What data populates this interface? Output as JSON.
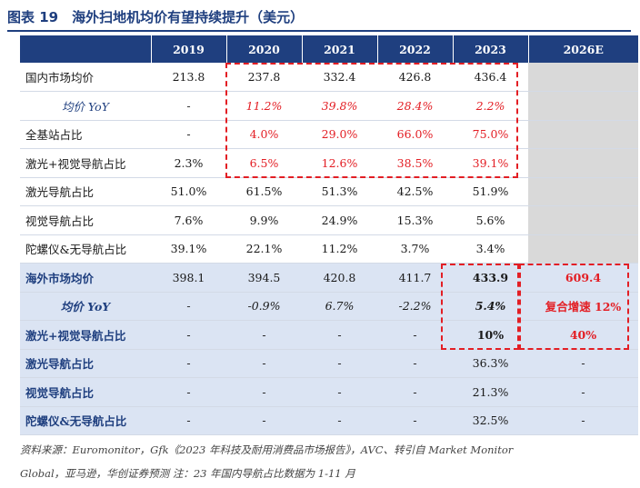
{
  "title": "图表 19　海外扫地机均价有望持续提升（美元）",
  "columns": [
    "",
    "2019",
    "2020",
    "2021",
    "2022",
    "2023",
    "2026E"
  ],
  "domestic_rows": [
    {
      "label": "国内市场均价",
      "values": [
        "213.8",
        "237.8",
        "332.4",
        "426.8",
        "436.4",
        ""
      ]
    },
    {
      "label": "均价 YoY",
      "values": [
        "-",
        "11.2%",
        "39.8%",
        "28.4%",
        "2.2%",
        ""
      ]
    },
    {
      "label": "全基站占比",
      "values": [
        "-",
        "4.0%",
        "29.0%",
        "66.0%",
        "75.0%",
        ""
      ]
    },
    {
      "label": "激光+视觉导航占比",
      "values": [
        "2.3%",
        "6.5%",
        "12.6%",
        "38.5%",
        "39.1%",
        ""
      ]
    },
    {
      "label": "激光导航占比",
      "values": [
        "51.0%",
        "61.5%",
        "51.3%",
        "42.5%",
        "51.9%",
        ""
      ]
    },
    {
      "label": "视觉导航占比",
      "values": [
        "7.6%",
        "9.9%",
        "24.9%",
        "15.3%",
        "5.6%",
        ""
      ]
    },
    {
      "label": "陀螺仪&无导航占比",
      "values": [
        "39.1%",
        "22.1%",
        "11.2%",
        "3.7%",
        "3.4%",
        ""
      ]
    }
  ],
  "overseas_rows": [
    {
      "label": "海外市场均价",
      "values": [
        "398.1",
        "394.5",
        "420.8",
        "411.7",
        "433.9",
        "609.4"
      ]
    },
    {
      "label": "均价 YoY",
      "values": [
        "-",
        "-0.9%",
        "6.7%",
        "-2.2%",
        "5.4%",
        "复合增速 12%"
      ]
    },
    {
      "label": "激光+视觉导航占比",
      "values": [
        "-",
        "-",
        "-",
        "-",
        "10%",
        "40%"
      ]
    },
    {
      "label": "激光导航占比",
      "values": [
        "-",
        "-",
        "-",
        "-",
        "36.3%",
        "-"
      ]
    },
    {
      "label": "视觉导航占比",
      "values": [
        "-",
        "-",
        "-",
        "-",
        "21.3%",
        "-"
      ]
    },
    {
      "label": "陀螺仪&无导航占比",
      "values": [
        "-",
        "-",
        "-",
        "-",
        "32.5%",
        "-"
      ]
    }
  ],
  "source_line1": "资料来源：Euromonitor，Gfk《2023 年科技及耐用消费品市场报告》，AVC、转引自 Market Monitor",
  "source_line2": "Global，亚马逊，华创证券预测 注：23 年国内导航占比数据为 1-11 月",
  "colors": {
    "header_bg": "#1f3f7f",
    "highlight": "#e31e24",
    "overseas_bg": "#dbe4f3",
    "blank_bg": "#d9d9d9"
  }
}
